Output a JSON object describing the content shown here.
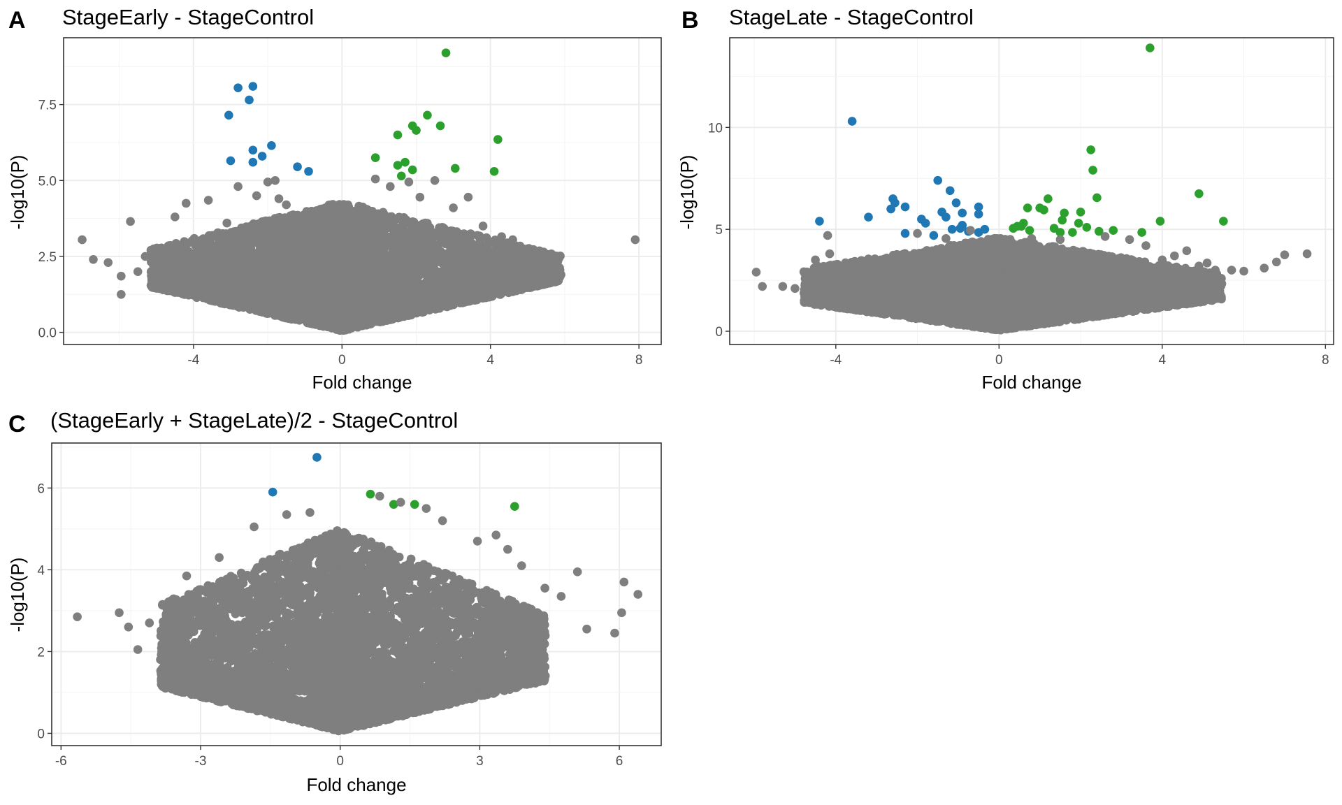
{
  "chart_data": [
    {
      "panel": "A",
      "type": "scatter",
      "title": "StageEarly - StageControl",
      "xlabel": "Fold change",
      "ylabel": "-log10(P)",
      "xlim": [
        -7.5,
        8.6
      ],
      "ylim": [
        -0.4,
        9.7
      ],
      "xticks": [
        -4,
        0,
        4,
        8
      ],
      "yticks": [
        0.0,
        2.5,
        5.0,
        7.5
      ],
      "ytick_labels": [
        "0.0",
        "2.5",
        "5.0",
        "7.5"
      ],
      "grid": true,
      "colors": {
        "down": "#1f77b4",
        "up": "#2ca02c",
        "ns": "#7f7f7f"
      },
      "cloud": {
        "ymax_near": 4.3,
        "ymax_far": 2.6,
        "spread": 5.6
      },
      "series": [
        {
          "group": "down",
          "x": [
            -2.8,
            -2.4,
            -2.5,
            -3.05,
            -1.9,
            -2.4,
            -2.15,
            -3.0,
            -2.4,
            -1.2,
            -0.9
          ],
          "y": [
            8.05,
            8.1,
            7.65,
            7.15,
            6.15,
            6.0,
            5.8,
            5.65,
            5.6,
            5.45,
            5.3
          ]
        },
        {
          "group": "up",
          "x": [
            2.8,
            2.3,
            2.65,
            1.9,
            2.0,
            1.5,
            4.2,
            0.9,
            1.7,
            1.5,
            1.9,
            3.05,
            4.1,
            1.6
          ],
          "y": [
            9.2,
            7.15,
            6.8,
            6.8,
            6.65,
            6.5,
            6.35,
            5.75,
            5.6,
            5.5,
            5.35,
            5.4,
            5.3,
            5.15
          ]
        },
        {
          "group": "ns",
          "x": [
            -7.0,
            -5.7,
            -6.7,
            -6.3,
            -5.95,
            -5.95,
            -5.5,
            -5.3,
            -5.05,
            -4.75,
            -4.5,
            -4.4,
            -4.2,
            -4.1,
            -3.6,
            -3.1,
            -2.8,
            -2.3,
            -2.0,
            -1.8,
            -1.7,
            -1.5,
            0.9,
            1.3,
            1.8,
            2.1,
            2.5,
            3.0,
            3.4,
            3.8,
            4.3,
            4.6,
            5.0,
            5.3,
            5.6,
            5.9,
            7.9
          ],
          "y": [
            3.05,
            3.65,
            2.4,
            2.3,
            1.85,
            1.25,
            2.0,
            2.5,
            1.6,
            2.3,
            3.8,
            2.5,
            4.25,
            2.1,
            4.35,
            3.6,
            4.8,
            4.5,
            4.95,
            5.0,
            4.4,
            4.2,
            5.05,
            4.8,
            4.95,
            4.45,
            5.0,
            4.1,
            4.45,
            3.5,
            3.15,
            3.05,
            2.75,
            2.65,
            2.1,
            1.9,
            3.05
          ]
        }
      ]
    },
    {
      "panel": "B",
      "type": "scatter",
      "title": "StageLate - StageControl",
      "xlabel": "Fold change",
      "ylabel": "-log10(P)",
      "xlim": [
        -6.6,
        8.2
      ],
      "ylim": [
        -0.65,
        14.4
      ],
      "xticks": [
        -4,
        0,
        4,
        8
      ],
      "yticks": [
        0,
        5,
        10
      ],
      "ytick_labels": [
        "0",
        "5",
        "10"
      ],
      "grid": true,
      "colors": {
        "down": "#1f77b4",
        "up": "#2ca02c",
        "ns": "#7f7f7f"
      },
      "cloud": {
        "ymax_near": 4.6,
        "ymax_far": 2.9,
        "spread": 5.2
      },
      "series": [
        {
          "group": "down",
          "x": [
            -3.6,
            -1.5,
            -2.6,
            -2.55,
            -2.3,
            -1.2,
            -0.5,
            -1.05,
            -0.9,
            -2.65,
            -1.4,
            -0.5,
            -3.2,
            -4.4,
            -1.9,
            -0.9,
            -1.3,
            -1.8,
            -2.3,
            -1.15,
            -0.75,
            -0.5,
            -0.35,
            -0.95,
            -1.6
          ],
          "y": [
            10.3,
            7.4,
            6.5,
            6.3,
            6.1,
            6.9,
            6.1,
            6.3,
            5.8,
            6.0,
            5.85,
            5.75,
            5.6,
            5.4,
            5.5,
            5.2,
            5.6,
            5.3,
            4.8,
            5.0,
            4.9,
            4.85,
            5.0,
            5.05,
            4.7
          ]
        },
        {
          "group": "up",
          "x": [
            3.7,
            2.25,
            2.3,
            4.9,
            2.4,
            1.2,
            0.7,
            1.0,
            1.1,
            1.6,
            2.0,
            1.55,
            1.95,
            5.5,
            3.95,
            2.15,
            0.6,
            0.45,
            0.75,
            1.35,
            1.8,
            2.45,
            2.8,
            3.5,
            1.5,
            0.35,
            0.55
          ],
          "y": [
            13.9,
            8.9,
            7.9,
            6.75,
            6.55,
            6.5,
            6.05,
            6.05,
            5.95,
            5.8,
            5.85,
            5.45,
            5.3,
            5.4,
            5.4,
            5.1,
            5.3,
            5.15,
            4.95,
            5.05,
            4.85,
            4.9,
            4.95,
            4.85,
            4.85,
            5.05,
            5.15
          ]
        },
        {
          "group": "ns",
          "x": [
            -5.95,
            -5.8,
            -5.3,
            -5.0,
            -4.6,
            -4.5,
            -4.45,
            -4.2,
            -4.15,
            -2.0,
            -1.3,
            -0.7,
            0.8,
            1.5,
            2.6,
            3.2,
            3.6,
            4.0,
            4.3,
            4.6,
            4.9,
            5.1,
            5.3,
            5.7,
            6.0,
            6.5,
            6.8,
            7.0,
            7.55
          ],
          "y": [
            2.9,
            2.2,
            2.2,
            2.1,
            2.3,
            3.5,
            3.2,
            4.7,
            3.8,
            4.8,
            4.55,
            4.95,
            4.55,
            4.5,
            4.65,
            4.5,
            4.2,
            3.5,
            3.7,
            3.95,
            3.2,
            3.35,
            3.0,
            3.0,
            2.95,
            3.1,
            3.4,
            3.75,
            3.8
          ]
        }
      ]
    },
    {
      "panel": "C",
      "type": "scatter",
      "title": "(StageEarly + StageLate)/2 - StageControl",
      "xlabel": "Fold change",
      "ylabel": "-log10(P)",
      "xlim": [
        -6.2,
        6.9
      ],
      "ylim": [
        -0.3,
        7.1
      ],
      "xticks": [
        -6,
        -3,
        0,
        3,
        6
      ],
      "yticks": [
        0,
        2,
        4,
        6
      ],
      "ytick_labels": [
        "0",
        "2",
        "4",
        "6"
      ],
      "grid": true,
      "colors": {
        "down": "#1f77b4",
        "up": "#2ca02c",
        "ns": "#7f7f7f"
      },
      "cloud": {
        "ymax_near": 5.0,
        "ymax_far": 3.0,
        "spread": 4.2
      },
      "series": [
        {
          "group": "down",
          "x": [
            -0.5,
            -1.45
          ],
          "y": [
            6.75,
            5.9
          ]
        },
        {
          "group": "up",
          "x": [
            0.65,
            1.15,
            1.6,
            3.75
          ],
          "y": [
            5.85,
            5.6,
            5.6,
            5.55
          ]
        },
        {
          "group": "ns",
          "x": [
            -5.65,
            -4.75,
            -4.55,
            -4.35,
            -4.1,
            -3.3,
            -3.1,
            -2.6,
            -1.85,
            -1.15,
            -0.65,
            0.85,
            1.3,
            1.85,
            2.2,
            2.95,
            3.35,
            3.6,
            3.9,
            4.4,
            4.75,
            5.1,
            5.3,
            5.9,
            6.05,
            6.1,
            6.4
          ],
          "y": [
            2.85,
            2.95,
            2.6,
            2.05,
            2.7,
            3.85,
            3.3,
            4.3,
            5.05,
            5.35,
            5.4,
            5.8,
            5.65,
            5.5,
            5.2,
            4.7,
            4.85,
            4.5,
            4.1,
            3.55,
            3.35,
            3.95,
            2.55,
            2.45,
            2.95,
            3.7,
            3.4
          ]
        }
      ]
    }
  ]
}
